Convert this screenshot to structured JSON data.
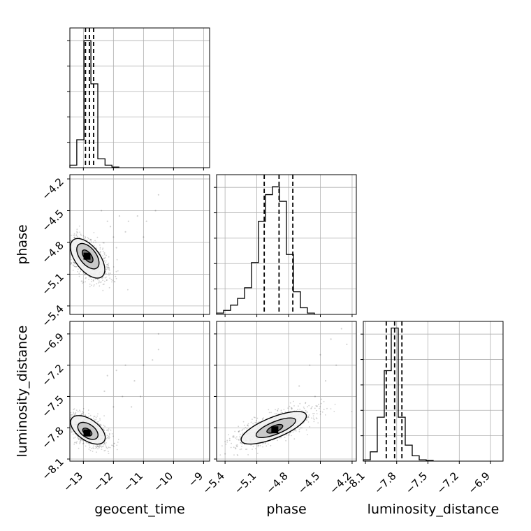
{
  "chart_data": {
    "type": "corner",
    "grid": true,
    "parameters": [
      "geocent_time",
      "phase",
      "luminosity_distance"
    ],
    "axis_labels": {
      "x": [
        "geocent_time",
        "phase",
        "luminosity_distance"
      ],
      "y": [
        "",
        "phase",
        "luminosity_distance"
      ]
    },
    "ranges": {
      "geocent_time": [
        -13.45,
        -8.8
      ],
      "phase": [
        -5.48,
        -4.16
      ],
      "luminosity_distance": [
        -8.12,
        -6.78
      ]
    },
    "ticks": {
      "geocent_time": [
        {
          "v": -13,
          "label": "−13"
        },
        {
          "v": -12,
          "label": "−12"
        },
        {
          "v": -11,
          "label": "−11"
        },
        {
          "v": -10,
          "label": "−10"
        },
        {
          "v": -9,
          "label": "−9"
        }
      ],
      "phase": [
        {
          "v": -5.4,
          "label": "−5.4"
        },
        {
          "v": -5.1,
          "label": "−5.1"
        },
        {
          "v": -4.8,
          "label": "−4.8"
        },
        {
          "v": -4.5,
          "label": "−4.5"
        },
        {
          "v": -4.2,
          "label": "−4.2"
        }
      ],
      "luminosity_distance": [
        {
          "v": -8.1,
          "label": "−8.1"
        },
        {
          "v": -7.8,
          "label": "−7.8"
        },
        {
          "v": -7.5,
          "label": "−7.5"
        },
        {
          "v": -7.2,
          "label": "−7.2"
        },
        {
          "v": -6.9,
          "label": "−6.9"
        }
      ]
    },
    "histograms": [
      {
        "parameter": "geocent_time",
        "bin_edges": [
          -13.45,
          -13.22,
          -12.98,
          -12.75,
          -12.52,
          -12.28,
          -12.05,
          -11.82
        ],
        "counts": [
          0.02,
          0.22,
          1.0,
          0.66,
          0.07,
          0.02,
          0.005
        ],
        "ylim": [
          0,
          1.1
        ],
        "quantiles": [
          -12.93,
          -12.8,
          -12.66
        ]
      },
      {
        "parameter": "phase",
        "bin_edges": [
          -5.48,
          -5.414,
          -5.348,
          -5.282,
          -5.216,
          -5.15,
          -5.084,
          -5.018,
          -4.952,
          -4.886,
          -4.82,
          -4.754,
          -4.688,
          -4.622,
          -4.556
        ],
        "counts": [
          0.01,
          0.03,
          0.07,
          0.12,
          0.2,
          0.39,
          0.7,
          0.9,
          0.96,
          0.85,
          0.45,
          0.17,
          0.05,
          0.01
        ],
        "ylim": [
          0,
          1.05
        ],
        "quantiles": [
          -5.03,
          -4.89,
          -4.76
        ]
      },
      {
        "parameter": "luminosity_distance",
        "bin_edges": [
          -8.12,
          -8.053,
          -7.986,
          -7.919,
          -7.852,
          -7.785,
          -7.718,
          -7.651,
          -7.584,
          -7.517,
          -7.45
        ],
        "counts": [
          0.01,
          0.07,
          0.33,
          0.68,
          1.0,
          0.33,
          0.12,
          0.04,
          0.01,
          0.005
        ],
        "ylim": [
          0,
          1.05
        ],
        "quantiles": [
          -7.9,
          -7.82,
          -7.75
        ]
      }
    ],
    "joint_panels": [
      {
        "x": "geocent_time",
        "y": "phase",
        "peak": [
          -12.88,
          -4.93
        ],
        "contour_ellipses": [
          {
            "cx": -12.86,
            "cy": -4.95,
            "rx": 0.4,
            "ry": 0.22,
            "angle_deg": 38
          },
          {
            "cx": -12.85,
            "cy": -4.93,
            "rx": 0.27,
            "ry": 0.14,
            "angle_deg": 38
          },
          {
            "cx": -12.86,
            "cy": -4.93,
            "rx": 0.12,
            "ry": 0.07,
            "angle_deg": 38
          }
        ],
        "outliers": [
          [
            -12.2,
            -4.6
          ],
          [
            -11.8,
            -4.55
          ],
          [
            -11.5,
            -4.6
          ],
          [
            -11.2,
            -4.55
          ],
          [
            -10.9,
            -4.6
          ],
          [
            -10.6,
            -4.5
          ],
          [
            -10.5,
            -4.35
          ],
          [
            -12.0,
            -4.75
          ],
          [
            -11.6,
            -4.7
          ],
          [
            -12.3,
            -4.9
          ],
          [
            -11.9,
            -4.85
          ],
          [
            -12.1,
            -4.65
          ],
          [
            -11.0,
            -4.75
          ],
          [
            -12.4,
            -4.5
          ]
        ]
      },
      {
        "x": "geocent_time",
        "y": "luminosity_distance",
        "peak": [
          -12.88,
          -7.85
        ],
        "contour_ellipses": [
          {
            "cx": -12.85,
            "cy": -7.82,
            "rx": 0.35,
            "ry": 0.19,
            "angle_deg": 55
          },
          {
            "cx": -12.85,
            "cy": -7.83,
            "rx": 0.22,
            "ry": 0.11,
            "angle_deg": 55
          },
          {
            "cx": -12.87,
            "cy": -7.84,
            "rx": 0.1,
            "ry": 0.05,
            "angle_deg": 55
          }
        ],
        "outliers": [
          [
            -12.2,
            -7.3
          ],
          [
            -11.9,
            -7.25
          ],
          [
            -11.6,
            -7.2
          ],
          [
            -11.3,
            -7.35
          ],
          [
            -11.0,
            -7.2
          ],
          [
            -10.7,
            -7.15
          ],
          [
            -10.5,
            -7.05
          ],
          [
            -10.5,
            -6.9
          ],
          [
            -12.0,
            -7.6
          ],
          [
            -11.7,
            -7.5
          ],
          [
            -12.3,
            -7.45
          ],
          [
            -11.4,
            -7.6
          ],
          [
            -11.1,
            -7.5
          ]
        ]
      },
      {
        "x": "phase",
        "y": "luminosity_distance",
        "peak": [
          -4.93,
          -7.82
        ],
        "contour_ellipses": [
          {
            "cx": -4.94,
            "cy": -7.8,
            "rx": 0.33,
            "ry": 0.1,
            "angle_deg": 22
          },
          {
            "cx": -4.92,
            "cy": -7.8,
            "rx": 0.2,
            "ry": 0.06,
            "angle_deg": 22
          },
          {
            "cx": -4.93,
            "cy": -7.81,
            "rx": 0.08,
            "ry": 0.03,
            "angle_deg": 22
          }
        ],
        "outliers": [
          [
            -4.6,
            -7.2
          ],
          [
            -4.5,
            -7.1
          ],
          [
            -4.4,
            -6.95
          ],
          [
            -4.3,
            -6.85
          ],
          [
            -4.25,
            -7.0
          ],
          [
            -4.7,
            -7.4
          ],
          [
            -4.55,
            -7.5
          ],
          [
            -4.45,
            -7.35
          ],
          [
            -5.3,
            -8.0
          ],
          [
            -5.4,
            -8.05
          ],
          [
            -4.35,
            -7.2
          ]
        ]
      }
    ]
  }
}
